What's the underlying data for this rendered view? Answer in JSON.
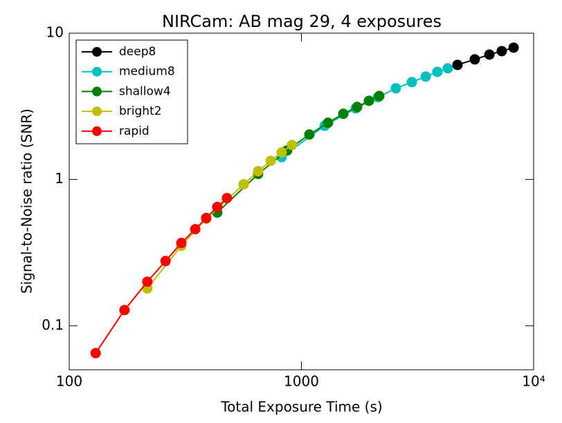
{
  "chart_data": {
    "type": "line",
    "title": "NIRCam: AB mag 29, 4 exposures",
    "x_label": "Total Exposure Time (s)",
    "y_label": "Signal-to-Noise ratio (SNR)",
    "xscale": "log",
    "yscale": "log",
    "xlim": [
      100,
      10000
    ],
    "ylim": [
      0.05,
      10
    ],
    "xticks": [
      100,
      1000,
      {
        "value": 10000,
        "label": "10⁴"
      }
    ],
    "yticks": [
      0.1,
      1,
      10
    ],
    "legend": "upper left",
    "series": [
      {
        "name": "deep8",
        "color": "#000000",
        "x": [
          4700,
          5580,
          6450,
          7290,
          8200
        ],
        "values": [
          6.07,
          6.62,
          7.14,
          7.54,
          7.96
        ]
      },
      {
        "name": "medium8",
        "color": "#00bfbf",
        "x": [
          822,
          1259,
          1714,
          2135,
          2551,
          2989,
          3430,
          3852,
          4270
        ],
        "values": [
          1.42,
          2.33,
          3.06,
          3.65,
          4.2,
          4.63,
          5.05,
          5.44,
          5.75
        ]
      },
      {
        "name": "shallow4",
        "color": "#008000",
        "x": [
          434,
          651,
          868,
          1082,
          1302,
          1515,
          1738,
          1953,
          2164
        ],
        "values": [
          0.594,
          1.09,
          1.58,
          2.03,
          2.44,
          2.81,
          3.13,
          3.45,
          3.72
        ]
      },
      {
        "name": "bright2",
        "color": "#bfbf00",
        "x": [
          217,
          304,
          389,
          564,
          651,
          737,
          822,
          911
        ],
        "values": [
          0.18,
          0.352,
          0.538,
          0.927,
          1.14,
          1.34,
          1.53,
          1.72
        ]
      },
      {
        "name": "rapid",
        "color": "#ff0000",
        "x": [
          130,
          173,
          217,
          260,
          304,
          349,
          389,
          434,
          478
        ],
        "values": [
          0.065,
          0.128,
          0.2,
          0.277,
          0.368,
          0.457,
          0.545,
          0.648,
          0.746
        ]
      }
    ]
  }
}
